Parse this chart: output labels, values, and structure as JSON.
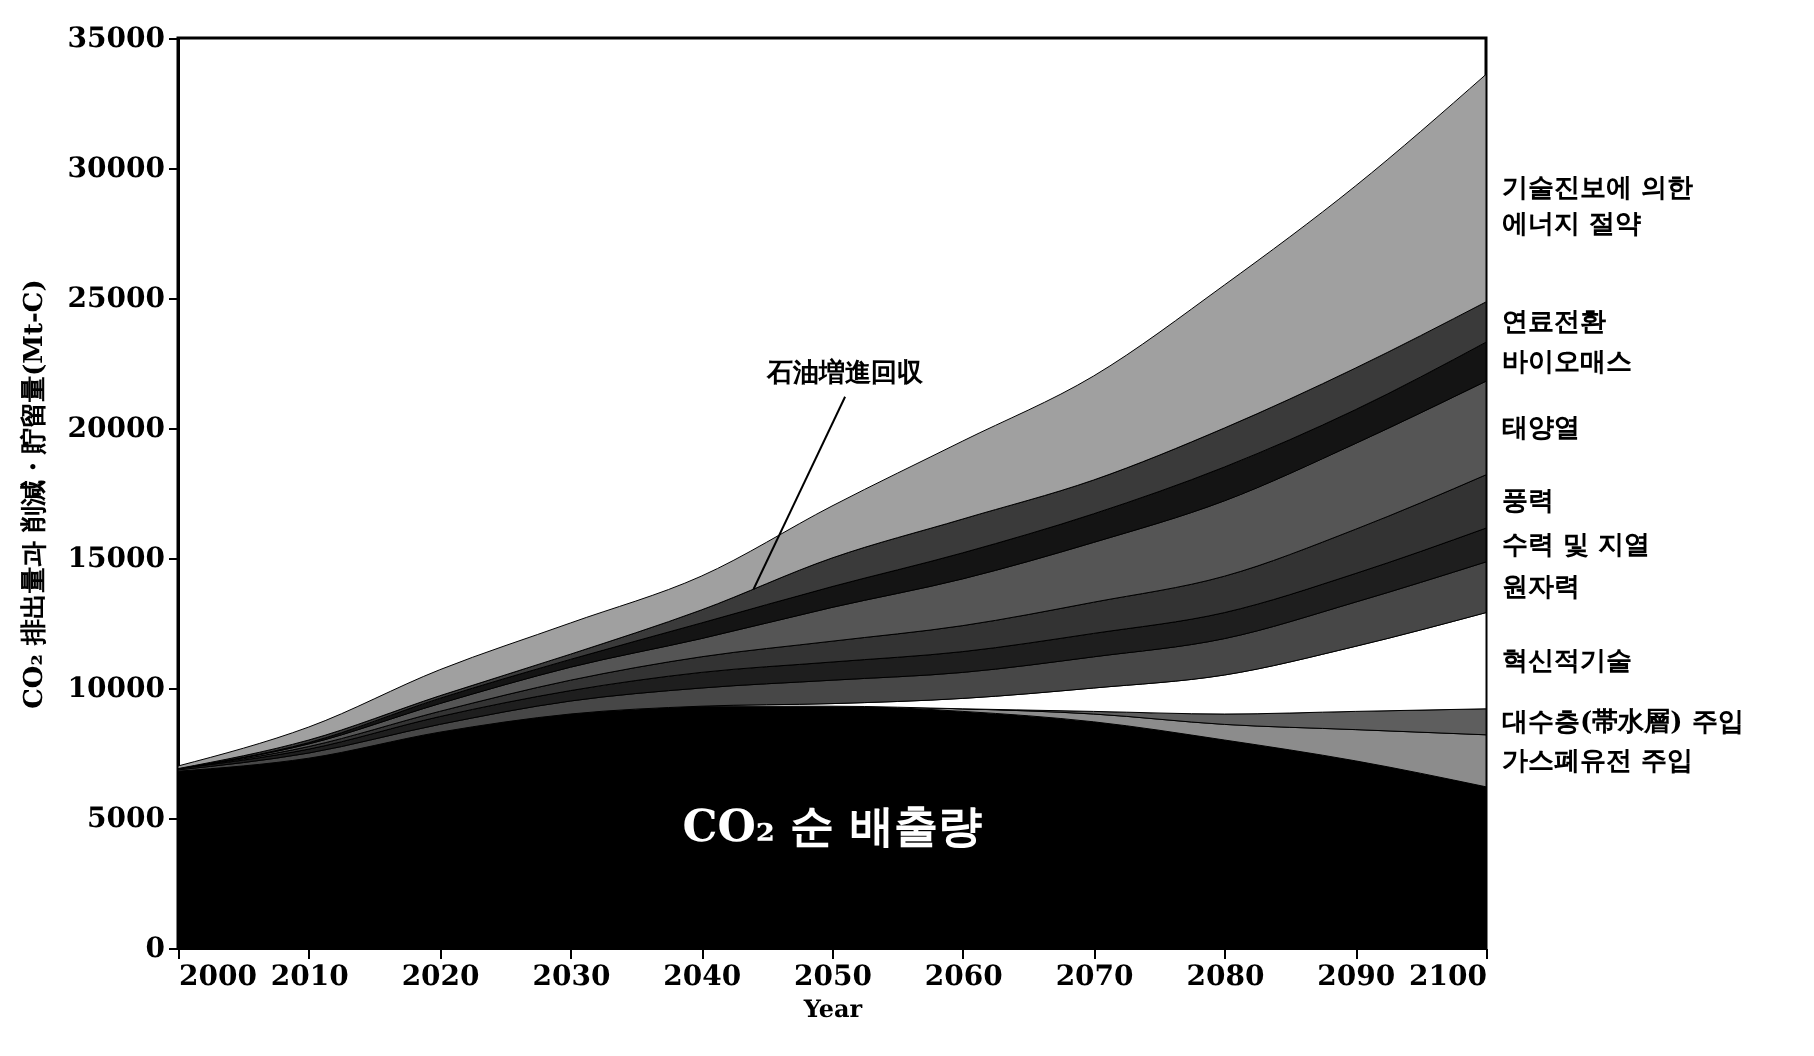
{
  "chart_data": {
    "type": "area",
    "stacked": true,
    "xlabel": "Year",
    "ylabel": "CO₂ 排出量과 削減・貯留量(Mt-C)",
    "x": [
      2000,
      2010,
      2020,
      2030,
      2040,
      2050,
      2060,
      2070,
      2080,
      2090,
      2100
    ],
    "xlim": [
      2000,
      2100
    ],
    "xticks": [
      2000,
      2010,
      2020,
      2030,
      2040,
      2050,
      2060,
      2070,
      2080,
      2090,
      2100
    ],
    "ylim": [
      0,
      35000
    ],
    "yticks": [
      0,
      5000,
      10000,
      15000,
      20000,
      25000,
      30000,
      35000
    ],
    "grid": false,
    "legend": false,
    "series": [
      {
        "name": "CO₂ 순 배출량",
        "color": "#000000",
        "values": [
          6800,
          7300,
          8300,
          9000,
          9300,
          9300,
          9100,
          8700,
          8000,
          7200,
          6200
        ]
      },
      {
        "name": "가스폐유전 주입",
        "color": "#8c8c8c",
        "values": [
          0,
          0,
          0,
          0,
          0,
          0,
          100,
          300,
          600,
          1200,
          2000
        ]
      },
      {
        "name": "대수층(帯水層) 주입",
        "color": "#5e5e5e",
        "values": [
          0,
          0,
          0,
          0,
          0,
          0,
          0,
          100,
          400,
          700,
          1000
        ]
      },
      {
        "name": "혁신적기술",
        "color": "#ffffff",
        "values": [
          0,
          0,
          0,
          0,
          0,
          100,
          400,
          900,
          1500,
          2500,
          3700
        ]
      },
      {
        "name": "원자력",
        "color": "#474747",
        "values": [
          50,
          200,
          300,
          500,
          700,
          900,
          1000,
          1200,
          1400,
          1700,
          1950
        ]
      },
      {
        "name": "수력 및 지열",
        "color": "#1e1e1e",
        "values": [
          50,
          150,
          300,
          400,
          600,
          700,
          800,
          900,
          1000,
          1100,
          1300
        ]
      },
      {
        "name": "풍력",
        "color": "#333333",
        "values": [
          0,
          100,
          200,
          400,
          600,
          800,
          1000,
          1200,
          1400,
          1700,
          2050
        ]
      },
      {
        "name": "태양열",
        "color": "#555555",
        "values": [
          0,
          100,
          300,
          500,
          700,
          1300,
          1800,
          2300,
          2900,
          3300,
          3600
        ]
      },
      {
        "name": "바이오매스",
        "color": "#141414",
        "values": [
          0,
          50,
          200,
          300,
          600,
          800,
          1000,
          1100,
          1300,
          1300,
          1500
        ]
      },
      {
        "name": "연료전환",
        "color": "#3a3a3a",
        "values": [
          0,
          100,
          100,
          200,
          500,
          1100,
          1300,
          1300,
          1500,
          1600,
          1550
        ]
      },
      {
        "name": "기술진보에 의한\n에너지 절약",
        "color": "#a0a0a0",
        "values": [
          100,
          500,
          1000,
          1200,
          1300,
          2000,
          3000,
          4000,
          5500,
          7000,
          8750
        ]
      }
    ],
    "annotations": [
      {
        "text": "石油増進回収",
        "x": 2044,
        "y": 13800
      }
    ]
  }
}
